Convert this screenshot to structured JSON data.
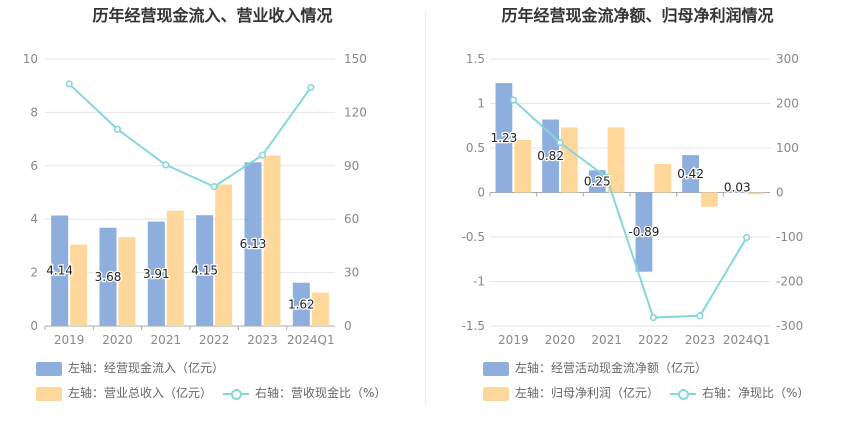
{
  "charts": [
    {
      "title": "历年经营现金流入、营业收入情况",
      "legend": {
        "bar1": "左轴：经营现金流入（亿元）",
        "bar2": "左轴：营业总收入（亿元）",
        "line": "右轴：营收现金比（%）"
      }
    },
    {
      "title": "历年经营现金流净额、归母净利润情况",
      "legend": {
        "bar1": "左轴：经营活动现金流净额（亿元）",
        "bar2": "左轴：归母净利润（亿元）",
        "line": "右轴：净现比（%）"
      }
    }
  ],
  "colors": {
    "bar1": "#8eaedd",
    "bar2": "#fdd89a",
    "line": "#85d7db"
  },
  "chart_data": [
    {
      "type": "bar",
      "categories": [
        "2019",
        "2020",
        "2021",
        "2022",
        "2023",
        "2024Q1"
      ],
      "series": [
        {
          "name": "左轴：经营现金流入（亿元）",
          "axis": "left",
          "values": [
            4.14,
            3.68,
            3.91,
            4.15,
            6.13,
            1.62
          ],
          "labels": [
            "4.14",
            "3.68",
            "3.91",
            "4.15",
            "6.13",
            "1.62"
          ]
        },
        {
          "name": "左轴：营业总收入（亿元）",
          "axis": "left",
          "values": [
            3.05,
            3.33,
            4.32,
            5.3,
            6.38,
            1.25
          ]
        },
        {
          "name": "右轴：营收现金比（%）",
          "axis": "right",
          "type": "line",
          "values": [
            136,
            110.5,
            90.5,
            78.3,
            96,
            134
          ]
        }
      ],
      "yleft": {
        "min": 0,
        "max": 10,
        "ticks": [
          "0",
          "2",
          "4",
          "6",
          "8",
          "10"
        ]
      },
      "yright": {
        "min": 0,
        "max": 150,
        "ticks": [
          "0",
          "30",
          "60",
          "90",
          "120",
          "150"
        ]
      }
    },
    {
      "type": "bar",
      "categories": [
        "2019",
        "2020",
        "2021",
        "2022",
        "2023",
        "2024Q1"
      ],
      "series": [
        {
          "name": "左轴：经营活动现金流净额（亿元）",
          "axis": "left",
          "values": [
            1.23,
            0.82,
            0.25,
            -0.89,
            0.42,
            0.03
          ],
          "labels": [
            "1.23",
            "0.82",
            "0.25",
            "-0.89",
            "0.42",
            "0.03"
          ]
        },
        {
          "name": "左轴：归母净利润（亿元）",
          "axis": "left",
          "values": [
            0.59,
            0.73,
            0.73,
            0.32,
            -0.16,
            -0.02
          ]
        },
        {
          "name": "右轴：净现比（%）",
          "axis": "right",
          "type": "line",
          "values": [
            208,
            112,
            34,
            -281,
            -277,
            -101
          ]
        }
      ],
      "yleft": {
        "min": -1.5,
        "max": 1.5,
        "ticks": [
          "-1.5",
          "-1",
          "-0.5",
          "0",
          "0.5",
          "1",
          "1.5"
        ]
      },
      "yright": {
        "min": -300,
        "max": 300,
        "ticks": [
          "-300",
          "-200",
          "-100",
          "0",
          "100",
          "200",
          "300"
        ]
      }
    }
  ]
}
